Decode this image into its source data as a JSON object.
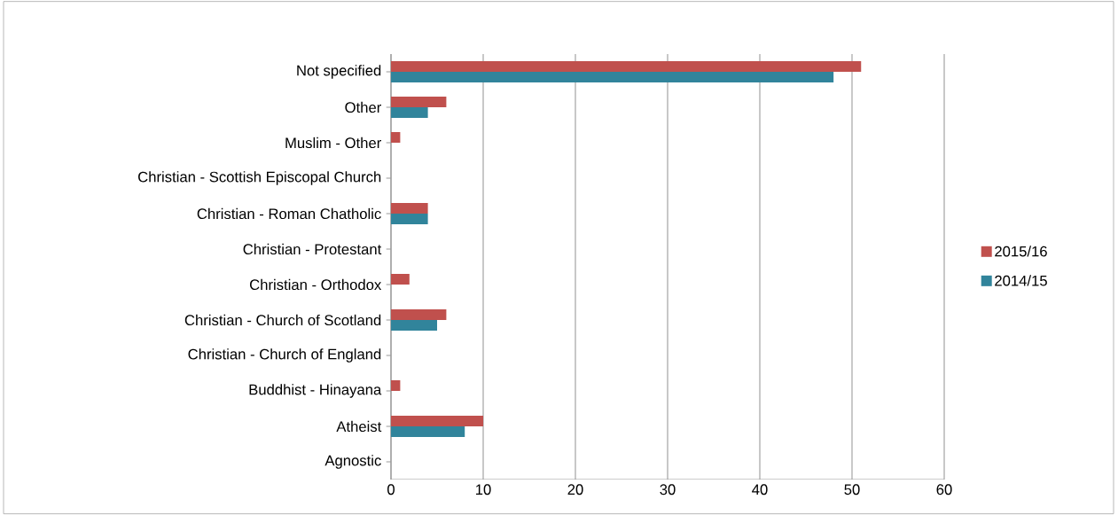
{
  "chart_data": {
    "type": "bar",
    "orientation": "horizontal",
    "categories": [
      "Not specified",
      "Other",
      "Muslim - Other",
      "Christian - Scottish Episcopal Church",
      "Christian - Roman Chatholic",
      "Christian - Protestant",
      "Christian - Orthodox",
      "Christian - Church of Scotland",
      "Christian - Church of England",
      "Buddhist - Hinayana",
      "Atheist",
      "Agnostic"
    ],
    "series": [
      {
        "name": "2015/16",
        "color": "#c0504d",
        "values": [
          51,
          6,
          1,
          0,
          4,
          0,
          2,
          6,
          0,
          1,
          10,
          0
        ]
      },
      {
        "name": "2014/15",
        "color": "#31849b",
        "values": [
          48,
          4,
          0,
          0,
          4,
          0,
          0,
          5,
          0,
          0,
          8,
          0
        ]
      }
    ],
    "xlim": [
      0,
      60
    ],
    "xticks": [
      0,
      10,
      20,
      30,
      40,
      50,
      60
    ],
    "grid": "x",
    "legend": "right"
  }
}
